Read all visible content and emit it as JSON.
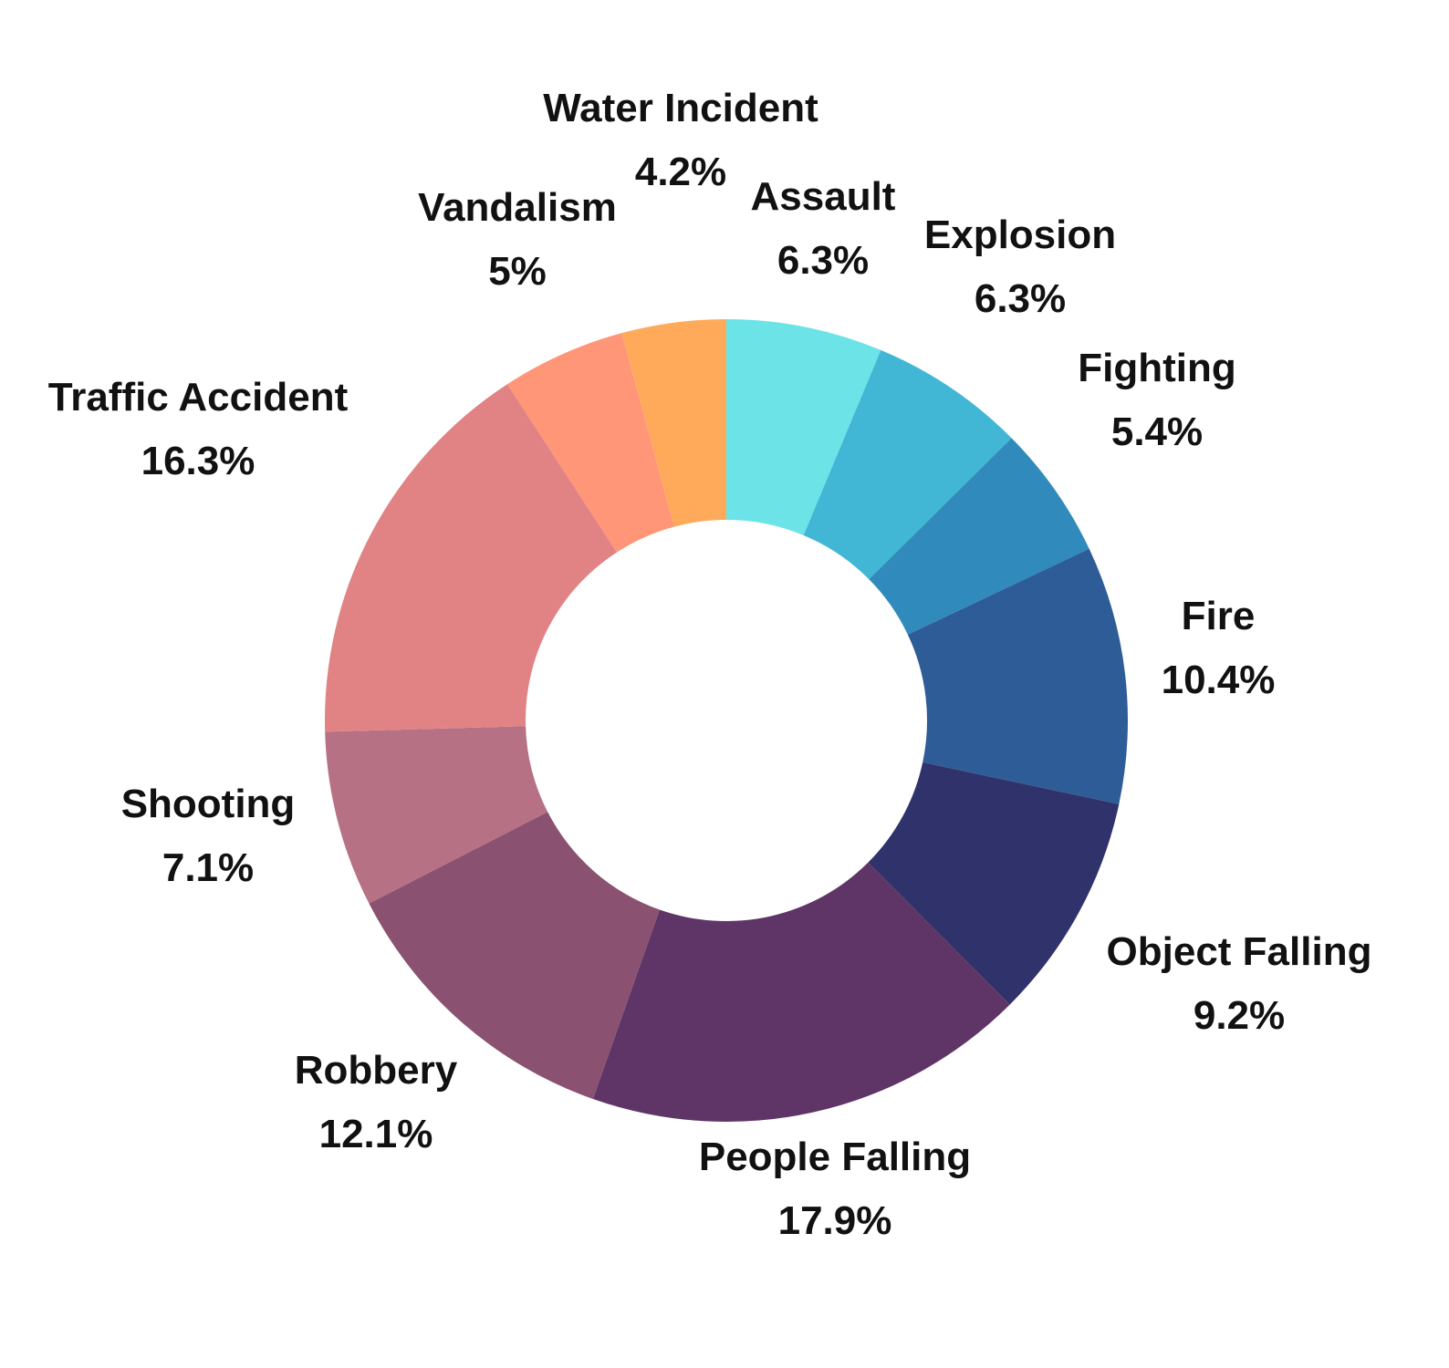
{
  "chart_data": {
    "type": "pie",
    "donut": true,
    "title": "",
    "slices": [
      {
        "label": "Assault",
        "value": 6.3,
        "display": "6.3%",
        "color": "#6CE3E6"
      },
      {
        "label": "Explosion",
        "value": 6.3,
        "display": "6.3%",
        "color": "#42B6D5"
      },
      {
        "label": "Fighting",
        "value": 5.4,
        "display": "5.4%",
        "color": "#308ABC"
      },
      {
        "label": "Fire",
        "value": 10.4,
        "display": "10.4%",
        "color": "#2E5C96"
      },
      {
        "label": "Object Falling",
        "value": 9.2,
        "display": "9.2%",
        "color": "#30336B"
      },
      {
        "label": "People Falling",
        "value": 17.9,
        "display": "17.9%",
        "color": "#5E3566"
      },
      {
        "label": "Robbery",
        "value": 12.1,
        "display": "12.1%",
        "color": "#8A5270"
      },
      {
        "label": "Shooting",
        "value": 7.1,
        "display": "7.1%",
        "color": "#B77184"
      },
      {
        "label": "Traffic Accident",
        "value": 16.3,
        "display": "16.3%",
        "color": "#E18385"
      },
      {
        "label": "Vandalism",
        "value": 5.0,
        "display": "5%",
        "color": "#FF9677"
      },
      {
        "label": "Water Incident",
        "value": 4.2,
        "display": "4.2%",
        "color": "#FFAA5B"
      }
    ],
    "start_angle": "12 o'clock",
    "direction": "clockwise",
    "legend": "none"
  }
}
